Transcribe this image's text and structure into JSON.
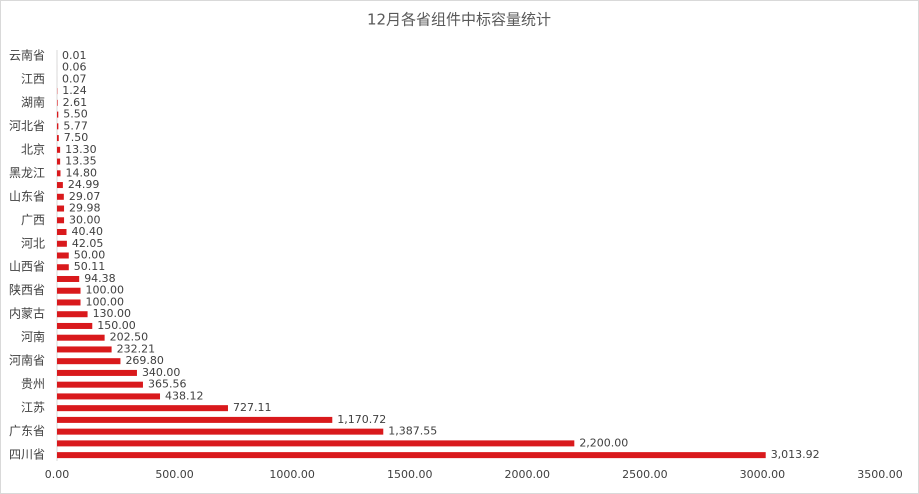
{
  "chart_data": {
    "type": "hbar",
    "title": "12月各省组件中标容量统计",
    "categories": [
      "云南省",
      null,
      "江西",
      null,
      "湖南",
      null,
      "河北省",
      null,
      "北京",
      null,
      "黑龙江",
      null,
      "山东省",
      null,
      "广西",
      null,
      "河北",
      null,
      "山西省",
      null,
      "陕西省",
      null,
      "内蒙古",
      null,
      "河南",
      null,
      "河南省",
      null,
      "贵州",
      null,
      "江苏",
      null,
      "广东省",
      null,
      "四川省"
    ],
    "values": [
      0.01,
      0.06,
      0.07,
      1.24,
      2.61,
      5.5,
      5.77,
      7.5,
      13.3,
      13.35,
      14.8,
      24.99,
      29.07,
      29.98,
      30,
      40.4,
      42.05,
      50,
      50.11,
      94.38,
      100,
      100,
      130,
      150,
      202.5,
      232.21,
      269.8,
      340,
      365.56,
      438.12,
      727.11,
      1170.72,
      1387.55,
      2200,
      3013.92
    ],
    "value_labels": [
      "0.01",
      "0.06",
      "0.07",
      "1.24",
      "2.61",
      "5.50",
      "5.77",
      "7.50",
      "13.30",
      "13.35",
      "14.80",
      "24.99",
      "29.07",
      "29.98",
      "30.00",
      "40.40",
      "42.05",
      "50.00",
      "50.11",
      "94.38",
      "100.00",
      "100.00",
      "130.00",
      "150.00",
      "202.50",
      "232.21",
      "269.80",
      "340.00",
      "365.56",
      "438.12",
      "727.11",
      "1,170.72",
      "1,387.55",
      "2,200.00",
      "3,013.92"
    ],
    "color": "#d9191c",
    "xlim": [
      0,
      3500
    ],
    "xticks": [
      {
        "value": 0,
        "label": "0.00"
      },
      {
        "value": 500,
        "label": "500.00"
      },
      {
        "value": 1000,
        "label": "1000.00"
      },
      {
        "value": 1500,
        "label": "1500.00"
      },
      {
        "value": 2000,
        "label": "2000.00"
      },
      {
        "value": 2500,
        "label": "2500.00"
      },
      {
        "value": 3000,
        "label": "3000.00"
      },
      {
        "value": 3500,
        "label": "3500.00"
      }
    ]
  }
}
